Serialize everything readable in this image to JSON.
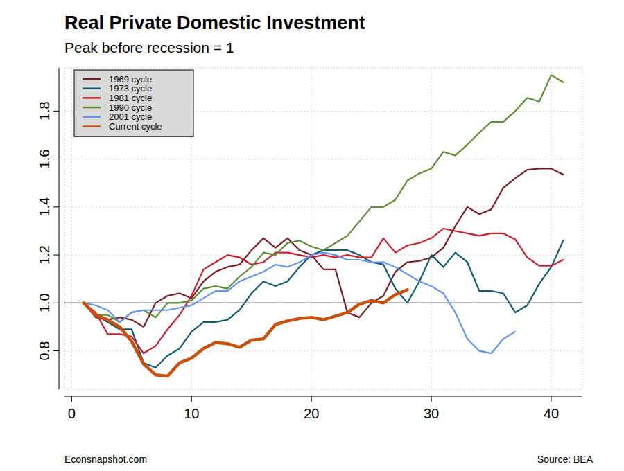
{
  "chart_data": {
    "type": "line",
    "title": "Real Private Domestic Investment",
    "subtitle": "Peak before recession = 1",
    "annotations": [
      "Econsnapshot.com",
      "Source: BEA"
    ],
    "reference_line": 1,
    "x": [
      1,
      2,
      3,
      4,
      5,
      6,
      7,
      8,
      9,
      10,
      11,
      12,
      13,
      14,
      15,
      16,
      17,
      18,
      19,
      20,
      21,
      22,
      23,
      24,
      25,
      26,
      27,
      28,
      29,
      30,
      31,
      32,
      33,
      34,
      35,
      36,
      37,
      38,
      39,
      40,
      41
    ],
    "series": [
      {
        "name": "1969 cycle",
        "color": "#7b1c22",
        "values": [
          1.0,
          0.94,
          0.93,
          0.94,
          0.93,
          0.9,
          1.0,
          1.03,
          1.04,
          1.02,
          1.09,
          1.13,
          1.15,
          1.16,
          1.22,
          1.27,
          1.23,
          1.27,
          1.22,
          1.2,
          1.14,
          1.14,
          0.96,
          0.94,
          1.0,
          1.03,
          1.13,
          1.17,
          1.175,
          1.19,
          1.23,
          1.32,
          1.4,
          1.37,
          1.39,
          1.48,
          1.52,
          1.555,
          1.56,
          1.56,
          1.535
        ]
      },
      {
        "name": "1973 cycle",
        "color": "#125a72",
        "values": [
          1.0,
          0.95,
          0.92,
          0.89,
          0.89,
          0.75,
          0.73,
          0.78,
          0.81,
          0.88,
          0.92,
          0.92,
          0.93,
          0.97,
          1.04,
          1.09,
          1.07,
          1.09,
          1.15,
          1.2,
          1.22,
          1.22,
          1.22,
          1.2,
          1.17,
          1.16,
          1.06,
          1.0,
          1.09,
          1.2,
          1.15,
          1.21,
          1.17,
          1.05,
          1.05,
          1.04,
          0.96,
          0.99,
          1.08,
          1.15,
          1.26
        ]
      },
      {
        "name": "1981 cycle",
        "color": "#c8202e",
        "values": [
          1.0,
          0.96,
          0.87,
          0.87,
          0.86,
          0.79,
          0.82,
          0.89,
          0.95,
          1.03,
          1.14,
          1.17,
          1.2,
          1.19,
          1.16,
          1.17,
          1.21,
          1.21,
          1.2,
          1.19,
          1.2,
          1.19,
          1.2,
          1.19,
          1.19,
          1.27,
          1.21,
          1.24,
          1.25,
          1.27,
          1.31,
          1.3,
          1.29,
          1.28,
          1.29,
          1.29,
          1.265,
          1.19,
          1.155,
          1.155,
          1.18
        ]
      },
      {
        "name": "1990 cycle",
        "color": "#5f8c35",
        "values": [
          1.0,
          0.95,
          0.95,
          0.92,
          0.96,
          0.97,
          0.94,
          1.0,
          1.0,
          1.01,
          1.06,
          1.07,
          1.06,
          1.11,
          1.15,
          1.21,
          1.2,
          1.25,
          1.26,
          1.235,
          1.22,
          1.25,
          1.28,
          1.34,
          1.4,
          1.4,
          1.43,
          1.51,
          1.54,
          1.56,
          1.63,
          1.615,
          1.66,
          1.71,
          1.755,
          1.755,
          1.8,
          1.855,
          1.84,
          1.95,
          1.92
        ]
      },
      {
        "name": "2001 cycle",
        "color": "#6495ed",
        "values": [
          1.0,
          0.99,
          0.97,
          0.92,
          0.96,
          0.97,
          0.97,
          0.97,
          0.98,
          0.99,
          1.02,
          1.05,
          1.05,
          1.09,
          1.11,
          1.13,
          1.16,
          1.15,
          1.17,
          1.2,
          1.21,
          1.2,
          1.18,
          1.18,
          1.17,
          1.17,
          1.15,
          1.12,
          1.09,
          1.07,
          1.04,
          0.96,
          0.85,
          0.8,
          0.79,
          0.85,
          0.88,
          null,
          null,
          null,
          null
        ]
      },
      {
        "name": "Current cycle",
        "color": "#c8500a",
        "values": [
          1.0,
          0.95,
          0.93,
          0.9,
          0.84,
          0.745,
          0.7,
          0.695,
          0.75,
          0.77,
          0.81,
          0.835,
          0.83,
          0.815,
          0.845,
          0.85,
          0.91,
          0.925,
          0.935,
          0.94,
          0.93,
          0.945,
          0.96,
          0.995,
          1.01,
          1.0,
          1.035,
          1.055,
          null,
          null,
          null,
          null,
          null,
          null,
          null,
          null,
          null,
          null,
          null,
          null,
          null
        ]
      }
    ],
    "xlim": [
      -0.6,
      42.6
    ],
    "ylim": [
      0.64,
      1.98
    ],
    "xticks": [
      0,
      10,
      20,
      30,
      40
    ],
    "yticks": [
      0.8,
      {
        "value": 1,
        "label": "1.0"
      },
      1.2,
      1.4,
      1.6,
      1.8
    ],
    "grid": true,
    "legend": "top-left"
  }
}
